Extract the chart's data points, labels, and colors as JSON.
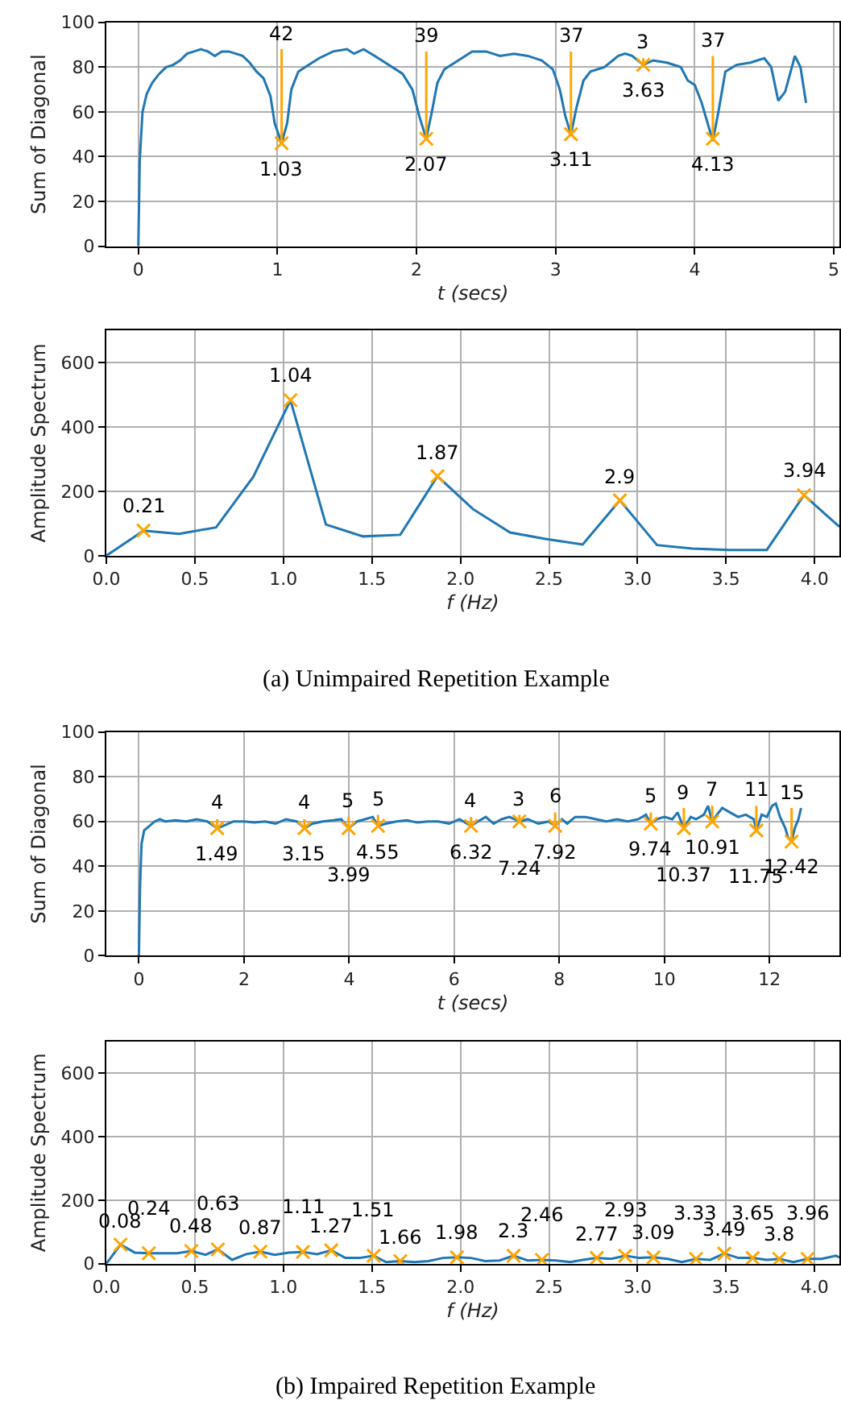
{
  "chart_data": [
    {
      "type": "line",
      "xlabel": "t (secs)",
      "ylabel": "Sum of Diagonal",
      "xlim": [
        -0.23,
        5.04
      ],
      "xticks": [
        0,
        1,
        2,
        3,
        4,
        5
      ],
      "ylim": [
        0,
        100
      ],
      "yticks": [
        0,
        20,
        40,
        60,
        80,
        100
      ],
      "grid": true,
      "legend": false,
      "series": [
        {
          "color": "#1f77b4",
          "x": [
            0,
            0.01,
            0.03,
            0.06,
            0.1,
            0.15,
            0.2,
            0.25,
            0.3,
            0.35,
            0.4,
            0.45,
            0.5,
            0.55,
            0.6,
            0.65,
            0.7,
            0.75,
            0.8,
            0.85,
            0.9,
            0.95,
            0.98,
            1.03,
            1.07,
            1.1,
            1.15,
            1.2,
            1.3,
            1.4,
            1.5,
            1.55,
            1.62,
            1.7,
            1.8,
            1.9,
            1.97,
            2.02,
            2.07,
            2.11,
            2.15,
            2.2,
            2.3,
            2.4,
            2.5,
            2.6,
            2.7,
            2.8,
            2.9,
            2.98,
            3.03,
            3.07,
            3.11,
            3.15,
            3.2,
            3.25,
            3.35,
            3.45,
            3.5,
            3.55,
            3.63,
            3.7,
            3.8,
            3.9,
            3.95,
            4.0,
            4.05,
            4.13,
            4.17,
            4.22,
            4.3,
            4.4,
            4.5,
            4.55,
            4.6,
            4.65,
            4.72,
            4.76,
            4.8
          ],
          "values": [
            0,
            38,
            60,
            68,
            73,
            77,
            80,
            81,
            83,
            86,
            87,
            88,
            87,
            85,
            87,
            87,
            86,
            85,
            82,
            78,
            75,
            67,
            55,
            46,
            55,
            70,
            78,
            80,
            84,
            87,
            88,
            86,
            88,
            85,
            81,
            77,
            70,
            58,
            48,
            60,
            73,
            79,
            83,
            87,
            87,
            85,
            86,
            85,
            83,
            79,
            70,
            58,
            50,
            62,
            74,
            78,
            80,
            85,
            86,
            85,
            81,
            83,
            82,
            80,
            74,
            72,
            64,
            47,
            60,
            78,
            81,
            82,
            84,
            80,
            65,
            69,
            85,
            80,
            64
          ]
        },
        {
          "type": "scatter",
          "marker": "cross",
          "color": "#ffa500",
          "x": [
            1.03,
            2.07,
            3.11,
            3.63,
            4.13
          ],
          "values": [
            46,
            48,
            50,
            81,
            48
          ],
          "errors": [
            [
              46,
              88
            ],
            [
              48,
              87
            ],
            [
              50,
              87
            ],
            [
              81,
              84
            ],
            [
              48,
              85
            ]
          ]
        }
      ],
      "annotations": [
        {
          "text": "42",
          "x": 1.03,
          "y": 88
        },
        {
          "text": "39",
          "x": 2.07,
          "y": 87
        },
        {
          "text": "37",
          "x": 3.11,
          "y": 87
        },
        {
          "text": "3",
          "x": 3.63,
          "y": 84
        },
        {
          "text": "37",
          "x": 4.13,
          "y": 85
        },
        {
          "text": "1.03",
          "x": 1.03,
          "y": 46
        },
        {
          "text": "2.07",
          "x": 2.07,
          "y": 48
        },
        {
          "text": "3.11",
          "x": 3.11,
          "y": 50
        },
        {
          "text": "3.63",
          "x": 3.63,
          "y": 81
        },
        {
          "text": "4.13",
          "x": 4.13,
          "y": 48
        }
      ]
    },
    {
      "type": "line",
      "xlabel": "f (Hz)",
      "ylabel": "Amplitude Spectrum",
      "xlim": [
        0,
        4.14
      ],
      "xticks": [
        {
          "value": 0,
          "label": "0.0"
        },
        0.5,
        {
          "value": 1,
          "label": "1.0"
        },
        1.5,
        {
          "value": 2,
          "label": "2.0"
        },
        2.5,
        {
          "value": 3,
          "label": "3.0"
        },
        3.5,
        {
          "value": 4,
          "label": "4.0"
        }
      ],
      "ylim": [
        0,
        700
      ],
      "yticks": [
        0,
        200,
        400,
        600
      ],
      "grid": true,
      "legend": false,
      "series": [
        {
          "color": "#1f77b4",
          "x": [
            0,
            0.21,
            0.41,
            0.62,
            0.83,
            1.04,
            1.24,
            1.45,
            1.66,
            1.87,
            2.07,
            2.28,
            2.48,
            2.69,
            2.9,
            3.11,
            3.31,
            3.52,
            3.73,
            3.94,
            4.14
          ],
          "values": [
            0,
            78,
            68,
            88,
            245,
            483,
            97,
            60,
            65,
            247,
            145,
            72,
            52,
            35,
            172,
            33,
            22,
            18,
            18,
            188,
            90
          ]
        },
        {
          "type": "scatter",
          "marker": "cross",
          "color": "#ffa500",
          "x": [
            0.21,
            1.04,
            1.87,
            2.9,
            3.94
          ],
          "values": [
            78,
            483,
            247,
            172,
            188
          ]
        }
      ],
      "annotations": [
        {
          "text": "0.21",
          "x": 0.21,
          "y": 78
        },
        {
          "text": "1.04",
          "x": 1.04,
          "y": 483
        },
        {
          "text": "1.87",
          "x": 1.87,
          "y": 247
        },
        {
          "text": "2.9",
          "x": 2.9,
          "y": 172
        },
        {
          "text": "3.94",
          "x": 3.94,
          "y": 188
        },
        "(a) Unimpaired Repetition Example"
      ]
    },
    {
      "type": "line",
      "xlabel": "t (secs)",
      "ylabel": "Sum of Diagonal",
      "xlim": [
        -0.62,
        13.33
      ],
      "xticks": [
        0,
        2,
        4,
        6,
        8,
        10,
        12
      ],
      "ylim": [
        0,
        100
      ],
      "yticks": [
        0,
        20,
        40,
        60,
        80,
        100
      ],
      "grid": true,
      "legend": false,
      "series": [
        {
          "color": "#1f77b4",
          "x": [
            0,
            0.02,
            0.05,
            0.1,
            0.2,
            0.3,
            0.4,
            0.5,
            0.7,
            0.9,
            1.1,
            1.3,
            1.49,
            1.6,
            1.8,
            2.0,
            2.2,
            2.4,
            2.6,
            2.8,
            3.0,
            3.15,
            3.3,
            3.5,
            3.7,
            3.85,
            3.99,
            4.15,
            4.3,
            4.45,
            4.55,
            4.7,
            4.9,
            5.1,
            5.3,
            5.5,
            5.7,
            5.9,
            6.1,
            6.32,
            6.45,
            6.6,
            6.75,
            6.9,
            7.05,
            7.24,
            7.4,
            7.6,
            7.8,
            7.92,
            8.05,
            8.15,
            8.3,
            8.5,
            8.7,
            8.9,
            9.1,
            9.3,
            9.5,
            9.65,
            9.74,
            9.85,
            10.0,
            10.15,
            10.25,
            10.37,
            10.5,
            10.6,
            10.75,
            10.83,
            10.91,
            11.0,
            11.1,
            11.25,
            11.4,
            11.55,
            11.7,
            11.75,
            11.85,
            11.95,
            12.05,
            12.12,
            12.2,
            12.3,
            12.35,
            12.42,
            12.48,
            12.55,
            12.6
          ],
          "values": [
            0,
            30,
            50,
            56,
            58,
            60,
            61,
            60,
            60.5,
            60,
            61,
            60,
            57,
            58,
            60,
            60,
            59.5,
            60,
            59,
            61,
            60,
            57,
            59,
            60,
            60.5,
            61,
            57,
            60,
            61,
            62,
            58,
            59,
            60,
            60.5,
            59.5,
            60,
            60,
            59,
            61,
            58,
            60,
            62,
            59,
            61,
            62,
            60,
            61,
            59,
            60,
            58,
            61,
            59,
            62,
            62,
            61,
            60,
            61,
            60,
            61,
            63,
            59,
            61,
            62,
            61,
            64,
            57,
            62,
            61,
            63,
            67,
            60,
            63,
            66,
            64,
            62,
            63,
            61,
            56,
            63,
            62,
            67,
            68,
            62,
            57,
            53,
            51,
            57,
            61,
            66
          ]
        },
        {
          "type": "scatter",
          "marker": "cross",
          "color": "#ffa500",
          "x": [
            1.49,
            3.15,
            3.99,
            4.55,
            6.32,
            7.24,
            7.92,
            9.74,
            10.37,
            10.91,
            11.75,
            12.42
          ],
          "values": [
            57,
            57,
            57,
            58,
            58,
            60,
            58,
            59,
            57,
            60,
            56,
            51
          ],
          "errors": [
            [
              57,
              61
            ],
            [
              57,
              61
            ],
            [
              57,
              62
            ],
            [
              58,
              63
            ],
            [
              58,
              62
            ],
            [
              60,
              63
            ],
            [
              58,
              64
            ],
            [
              59,
              64
            ],
            [
              57,
              66
            ],
            [
              60,
              67
            ],
            [
              56,
              67
            ],
            [
              51,
              66
            ]
          ]
        }
      ],
      "annotations": [
        {
          "text": "4",
          "x": 1.49,
          "y": 61
        },
        {
          "text": "4",
          "x": 3.15,
          "y": 61
        },
        {
          "text": "5",
          "x": 3.99,
          "y": 62
        },
        {
          "text": "5",
          "x": 4.55,
          "y": 63
        },
        {
          "text": "4",
          "x": 6.32,
          "y": 62
        },
        {
          "text": "3",
          "x": 7.24,
          "y": 63
        },
        {
          "text": "6",
          "x": 7.92,
          "y": 64
        },
        {
          "text": "5",
          "x": 9.74,
          "y": 64
        },
        {
          "text": "9",
          "x": 10.37,
          "y": 66
        },
        {
          "text": "7",
          "x": 10.91,
          "y": 67
        },
        {
          "text": "11",
          "x": 11.75,
          "y": 67
        },
        {
          "text": "15",
          "x": 12.42,
          "y": 66
        },
        {
          "text": "1.49",
          "x": 1.49,
          "y": 57
        },
        {
          "text": "3.15",
          "x": 3.15,
          "y": 57
        },
        {
          "text": "3.99",
          "x": 3.99,
          "y": 57
        },
        {
          "text": "4.55",
          "x": 4.55,
          "y": 58
        },
        {
          "text": "6.32",
          "x": 6.32,
          "y": 58
        },
        {
          "text": "7.24",
          "x": 7.24,
          "y": 60
        },
        {
          "text": "7.92",
          "x": 7.92,
          "y": 58
        },
        {
          "text": "9.74",
          "x": 9.74,
          "y": 59
        },
        {
          "text": "10.37",
          "x": 10.37,
          "y": 57
        },
        {
          "text": "10.91",
          "x": 10.91,
          "y": 60
        },
        {
          "text": "11.75",
          "x": 11.75,
          "y": 56
        },
        {
          "text": "12.42",
          "x": 12.42,
          "y": 51
        }
      ]
    },
    {
      "type": "line",
      "xlabel": "f (Hz)",
      "ylabel": "Amplitude Spectrum",
      "xlim": [
        0,
        4.14
      ],
      "xticks": [
        {
          "value": 0,
          "label": "0.0"
        },
        0.5,
        {
          "value": 1,
          "label": "1.0"
        },
        1.5,
        {
          "value": 2,
          "label": "2.0"
        },
        2.5,
        {
          "value": 3,
          "label": "3.0"
        },
        3.5,
        {
          "value": 4,
          "label": "4.0"
        }
      ],
      "ylim": [
        0,
        700
      ],
      "yticks": [
        0,
        200,
        400,
        600
      ],
      "grid": true,
      "legend": false,
      "series": [
        {
          "color": "#1f77b4",
          "x": [
            0,
            0.08,
            0.16,
            0.24,
            0.32,
            0.4,
            0.48,
            0.56,
            0.63,
            0.71,
            0.79,
            0.87,
            0.95,
            1.03,
            1.11,
            1.19,
            1.27,
            1.35,
            1.43,
            1.51,
            1.58,
            1.66,
            1.74,
            1.82,
            1.9,
            1.98,
            2.06,
            2.14,
            2.22,
            2.3,
            2.38,
            2.46,
            2.54,
            2.62,
            2.69,
            2.77,
            2.85,
            2.93,
            3.01,
            3.09,
            3.17,
            3.25,
            3.33,
            3.41,
            3.49,
            3.57,
            3.65,
            3.73,
            3.8,
            3.88,
            3.96,
            4.04,
            4.12,
            4.14
          ],
          "values": [
            0,
            60,
            35,
            33,
            33,
            33,
            40,
            28,
            45,
            12,
            30,
            38,
            28,
            35,
            37,
            30,
            42,
            18,
            18,
            25,
            5,
            8,
            5,
            8,
            18,
            20,
            18,
            8,
            10,
            25,
            10,
            12,
            10,
            5,
            12,
            18,
            15,
            25,
            18,
            20,
            15,
            5,
            15,
            12,
            32,
            18,
            18,
            12,
            15,
            5,
            15,
            15,
            25,
            20
          ]
        },
        {
          "type": "scatter",
          "marker": "cross",
          "color": "#ffa500",
          "x": [
            0.08,
            0.24,
            0.48,
            0.63,
            0.87,
            1.11,
            1.27,
            1.51,
            1.66,
            1.98,
            2.3,
            2.46,
            2.77,
            2.93,
            3.09,
            3.33,
            3.49,
            3.65,
            3.8,
            3.96
          ],
          "values": [
            60,
            33,
            40,
            45,
            38,
            37,
            42,
            25,
            8,
            20,
            25,
            12,
            18,
            25,
            20,
            15,
            32,
            18,
            15,
            15
          ]
        }
      ],
      "annotations": [
        {
          "text": "0.08",
          "x": 0.08,
          "y": 60
        },
        {
          "text": "0.24",
          "x": 0.24,
          "y": 33
        },
        {
          "text": "0.48",
          "x": 0.48,
          "y": 40
        },
        {
          "text": "0.63",
          "x": 0.63,
          "y": 45
        },
        {
          "text": "0.87",
          "x": 0.87,
          "y": 38
        },
        {
          "text": "1.11",
          "x": 1.11,
          "y": 37
        },
        {
          "text": "1.27",
          "x": 1.27,
          "y": 42
        },
        {
          "text": "1.51",
          "x": 1.51,
          "y": 25
        },
        {
          "text": "1.66",
          "x": 1.66,
          "y": 8
        },
        {
          "text": "1.98",
          "x": 1.98,
          "y": 20
        },
        {
          "text": "2.3",
          "x": 2.3,
          "y": 25
        },
        {
          "text": "2.46",
          "x": 2.46,
          "y": 12
        },
        {
          "text": "2.77",
          "x": 2.77,
          "y": 18
        },
        {
          "text": "2.93",
          "x": 2.93,
          "y": 25
        },
        {
          "text": "3.09",
          "x": 3.09,
          "y": 20
        },
        {
          "text": "3.33",
          "x": 3.33,
          "y": 15
        },
        {
          "text": "3.49",
          "x": 3.49,
          "y": 32
        },
        {
          "text": "3.65",
          "x": 3.65,
          "y": 18
        },
        {
          "text": "3.8",
          "x": 3.8,
          "y": 15
        },
        {
          "text": "3.96",
          "x": 3.96,
          "y": 15
        },
        "(b) Impaired Repetition Example"
      ]
    }
  ]
}
